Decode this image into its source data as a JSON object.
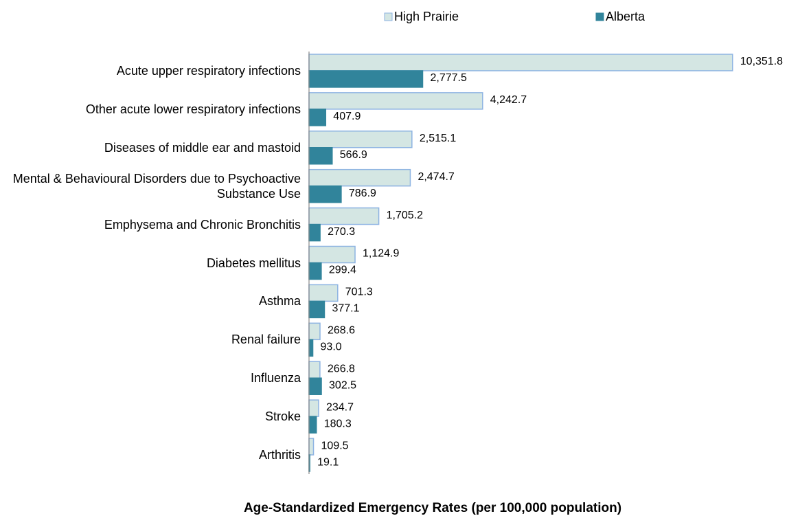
{
  "chart_data": {
    "type": "hbar",
    "x_label": "Age-Standardized Emergency Rates (per 100,000 population)",
    "categories": [
      "Acute upper respiratory infections",
      "Other acute lower respiratory infections",
      "Diseases of middle ear and mastoid",
      "Mental & Behavioural Disorders due to Psychoactive Substance Use",
      "Emphysema and Chronic Bronchitis",
      "Diabetes mellitus",
      "Asthma",
      "Renal failure",
      "Influenza",
      "Stroke",
      "Arthritis"
    ],
    "series": [
      {
        "name": "High Prairie",
        "color": "#d4e6e3",
        "edge": "#8db3e2",
        "values": [
          10351.8,
          4242.7,
          2515.1,
          2474.7,
          1705.2,
          1124.9,
          701.3,
          268.6,
          266.8,
          234.7,
          109.5
        ],
        "value_labels": [
          "10,351.8",
          "4,242.7",
          "2,515.1",
          "2,474.7",
          "1,705.2",
          "1,124.9",
          "701.3",
          "268.6",
          "266.8",
          "234.7",
          "109.5"
        ]
      },
      {
        "name": "Alberta",
        "color": "#31849b",
        "edge": "#31849b",
        "values": [
          2777.5,
          407.9,
          566.9,
          786.9,
          270.3,
          299.4,
          377.1,
          93.0,
          302.5,
          180.3,
          19.1
        ],
        "value_labels": [
          "2,777.5",
          "407.9",
          "566.9",
          "786.9",
          "270.3",
          "299.4",
          "377.1",
          "93.0",
          "302.5",
          "180.3",
          "19.1"
        ]
      }
    ],
    "xlim": [
      0,
      12000
    ],
    "legend": "top"
  }
}
